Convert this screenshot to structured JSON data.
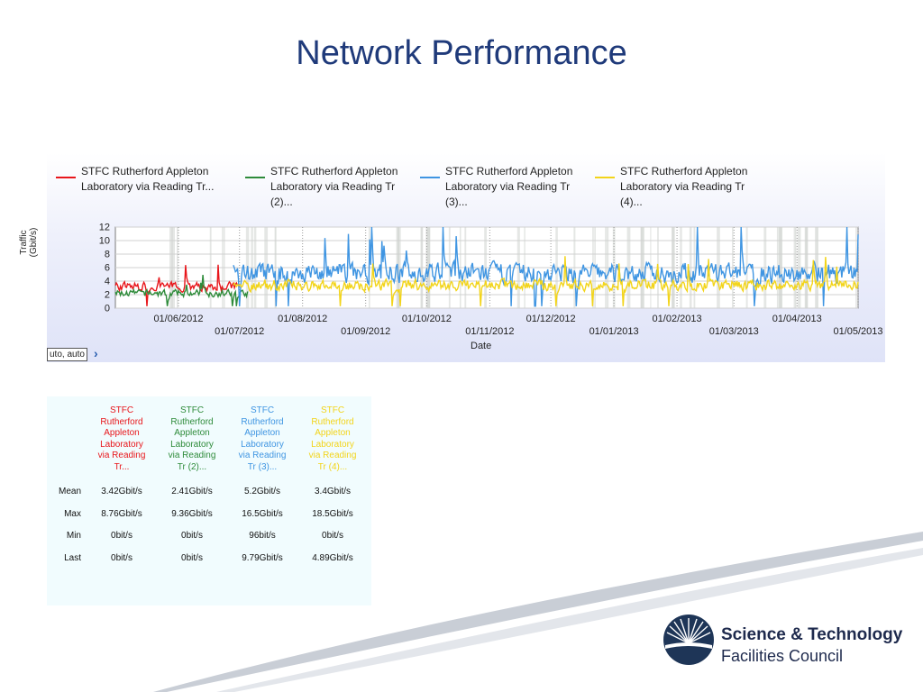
{
  "slide": {
    "title": "Network Performance"
  },
  "chart_data": {
    "type": "line",
    "title": "",
    "xlabel": "Date",
    "ylabel": "Traffic (Gbit/s)",
    "ylim": [
      0,
      12
    ],
    "yticks": [
      "0",
      "2",
      "4",
      "6",
      "8",
      "10",
      "12"
    ],
    "xlim": [
      "2012-05-01",
      "2013-05-01"
    ],
    "xticks": [
      "01/06/2012",
      "01/07/2012",
      "01/08/2012",
      "01/09/2012",
      "01/10/2012",
      "01/11/2012",
      "01/12/2012",
      "01/01/2013",
      "01/02/2013",
      "01/03/2013",
      "01/04/2013",
      "01/05/2013"
    ],
    "grid": true,
    "legend_position": "top",
    "series": [
      {
        "name": "STFC Rutherford Appleton Laboratory via Reading Tr...",
        "legend_lines": [
          "STFC Rutherford Appleton",
          "Laboratory via Reading Tr..."
        ],
        "color": "#e8161b",
        "x_start": "2012-05-01",
        "x_end": "2012-07-01",
        "level": 3.2,
        "amp": 0.9
      },
      {
        "name": "STFC Rutherford Appleton Laboratory via Reading Tr (2)...",
        "legend_lines": [
          "STFC Rutherford Appleton",
          "Laboratory via Reading Tr",
          "(2)..."
        ],
        "color": "#2e8b3a",
        "x_start": "2012-05-01",
        "x_end": "2012-07-05",
        "level": 2.2,
        "amp": 0.7
      },
      {
        "name": "STFC Rutherford Appleton Laboratory via Reading Tr (3)...",
        "legend_lines": [
          "STFC Rutherford Appleton",
          "Laboratory via Reading Tr",
          "(3)..."
        ],
        "color": "#3f95e2",
        "x_start": "2012-06-28",
        "x_end": "2013-05-01",
        "level": 5.2,
        "amp": 2.0
      },
      {
        "name": "STFC Rutherford Appleton Laboratory via Reading Tr (4)...",
        "legend_lines": [
          "STFC Rutherford Appleton",
          "Laboratory via Reading Tr",
          "(4)..."
        ],
        "color": "#f2d41a",
        "x_start": "2012-06-28",
        "x_end": "2013-05-01",
        "level": 3.4,
        "amp": 1.1
      }
    ]
  },
  "controls": {
    "scale_value": "uto, auto",
    "scale_arrow": "›"
  },
  "stats": {
    "headers": [
      {
        "lines": [
          "STFC",
          "Rutherford",
          "Appleton",
          "Laboratory",
          "via Reading",
          "Tr..."
        ],
        "color": "#e8161b"
      },
      {
        "lines": [
          "STFC",
          "Rutherford",
          "Appleton",
          "Laboratory",
          "via Reading",
          "Tr (2)..."
        ],
        "color": "#2e8b3a"
      },
      {
        "lines": [
          "STFC",
          "Rutherford",
          "Appleton",
          "Laboratory",
          "via Reading",
          "Tr (3)..."
        ],
        "color": "#3f95e2"
      },
      {
        "lines": [
          "STFC",
          "Rutherford",
          "Appleton",
          "Laboratory",
          "via Reading",
          "Tr (4)..."
        ],
        "color": "#f2d41a"
      }
    ],
    "rows": [
      {
        "label": "Mean",
        "values": [
          "3.42Gbit/s",
          "2.41Gbit/s",
          "5.2Gbit/s",
          "3.4Gbit/s"
        ]
      },
      {
        "label": "Max",
        "values": [
          "8.76Gbit/s",
          "9.36Gbit/s",
          "16.5Gbit/s",
          "18.5Gbit/s"
        ]
      },
      {
        "label": "Min",
        "values": [
          "0bit/s",
          "0bit/s",
          "96bit/s",
          "0bit/s"
        ]
      },
      {
        "label": "Last",
        "values": [
          "0bit/s",
          "0bit/s",
          "9.79Gbit/s",
          "4.89Gbit/s"
        ]
      }
    ]
  },
  "logo": {
    "line1": "Science & Technology",
    "line2": "Facilities Council",
    "icon": "stfc-sunburst-icon"
  }
}
